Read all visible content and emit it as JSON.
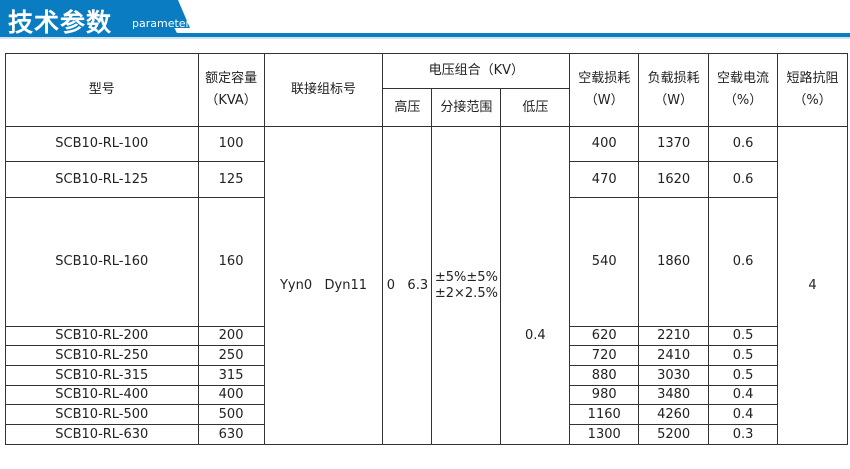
{
  "header": {
    "title": "技术参数",
    "subtitle": "parameter",
    "accent": "#0a7cc1"
  },
  "table": {
    "headers": {
      "model": "型号",
      "capacity": "额定容量",
      "capacity_unit": "（KVA）",
      "vector_group": "联接组标号",
      "voltage": "电压组合（KV）",
      "hv": "高压",
      "tap": "分接范围",
      "lv": "低压",
      "no_load_loss": "空载损耗",
      "no_load_loss_unit": "（W）",
      "load_loss": "负载损耗",
      "load_loss_unit": "（W）",
      "no_load_current": "空载电流",
      "no_load_current_unit": "（%）",
      "impedance": "短路抗阻",
      "impedance_unit": "（%）"
    },
    "merged": {
      "vector_group": "Yyn0   Dyn11",
      "hv": "0   6.3",
      "tap_line1": "±5%±5%",
      "tap_line2": "±2×2.5%",
      "lv": "0.4",
      "impedance": "4"
    },
    "rows": [
      {
        "model": "SCB10-RL-100",
        "capacity": "100",
        "p0": "400",
        "pk": "1370",
        "i0": "0.6"
      },
      {
        "model": "SCB10-RL-125",
        "capacity": "125",
        "p0": "470",
        "pk": "1620",
        "i0": "0.6"
      },
      {
        "model": "SCB10-RL-160",
        "capacity": "160",
        "p0": "540",
        "pk": "1860",
        "i0": "0.6"
      },
      {
        "model": "SCB10-RL-200",
        "capacity": "200",
        "p0": "620",
        "pk": "2210",
        "i0": "0.5"
      },
      {
        "model": "SCB10-RL-250",
        "capacity": "250",
        "p0": "720",
        "pk": "2410",
        "i0": "0.5"
      },
      {
        "model": "SCB10-RL-315",
        "capacity": "315",
        "p0": "880",
        "pk": "3030",
        "i0": "0.5"
      },
      {
        "model": "SCB10-RL-400",
        "capacity": "400",
        "p0": "980",
        "pk": "3480",
        "i0": "0.4"
      },
      {
        "model": "SCB10-RL-500",
        "capacity": "500",
        "p0": "1160",
        "pk": "4260",
        "i0": "0.4"
      },
      {
        "model": "SCB10-RL-630",
        "capacity": "630",
        "p0": "1300",
        "pk": "5200",
        "i0": "0.3"
      }
    ]
  }
}
